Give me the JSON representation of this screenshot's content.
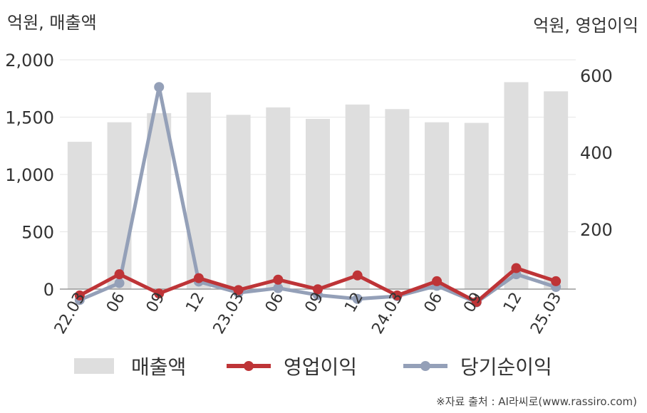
{
  "chart_data": {
    "type": "bar+line",
    "left_axis_title": "억원, 매출액",
    "right_axis_title": "억원, 영업이익",
    "categories": [
      "22.03",
      "06",
      "09",
      "12",
      "23.03",
      "06",
      "09",
      "12",
      "24.03",
      "06",
      "09",
      "12",
      "25.03"
    ],
    "y_left": {
      "min": 0,
      "max": 2000,
      "ticks": [
        0,
        500,
        1000,
        1500,
        2000
      ],
      "tick_labels": [
        "0",
        "500",
        "1,000",
        "1,500",
        "2,000"
      ]
    },
    "y_right": {
      "ticks": [
        200,
        400,
        600
      ],
      "tick_labels": [
        "200",
        "400",
        "600"
      ]
    },
    "series": [
      {
        "name": "매출액",
        "kind": "bar",
        "axis": "left",
        "color": "#dedede",
        "values": [
          1285,
          1455,
          1535,
          1715,
          1520,
          1585,
          1485,
          1610,
          1570,
          1455,
          1450,
          1805,
          1725
        ]
      },
      {
        "name": "영업이익",
        "kind": "line",
        "axis": "right",
        "color": "#be3437",
        "values": [
          28,
          83,
          33,
          73,
          42,
          69,
          44,
          80,
          28,
          65,
          11,
          99,
          65
        ]
      },
      {
        "name": "당기순이익",
        "kind": "line",
        "axis": "right",
        "color": "#94a0b8",
        "values": [
          16,
          60,
          570,
          64,
          35,
          47,
          29,
          19,
          26,
          53,
          10,
          83,
          50
        ]
      }
    ],
    "legend": {
      "position": "bottom",
      "items": [
        "매출액",
        "영업이익",
        "당기순이익"
      ]
    },
    "grid": true
  },
  "source": "※자료 출처 : AI라씨로(www.rassiro.com)"
}
